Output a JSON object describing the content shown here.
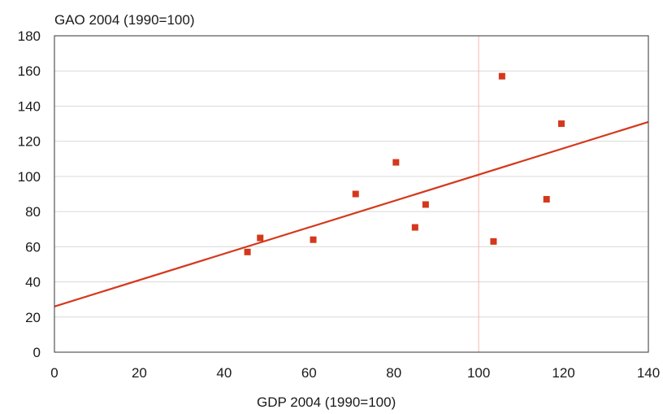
{
  "chart_data": {
    "type": "scatter",
    "title": "",
    "ylabel": "GAO  2004  (1990=100)",
    "xlabel": "GDP  2004  (1990=100)",
    "xlim": [
      0,
      140
    ],
    "ylim": [
      0,
      180
    ],
    "x_ticks": [
      0,
      20,
      40,
      60,
      80,
      100,
      120,
      140
    ],
    "y_ticks": [
      0,
      20,
      40,
      60,
      80,
      100,
      120,
      140,
      160,
      180
    ],
    "grid": "horizontal",
    "reference_line_x": 100,
    "series": [
      {
        "points": [
          {
            "x": 45.5,
            "y": 57
          },
          {
            "x": 48.5,
            "y": 65
          },
          {
            "x": 61,
            "y": 64
          },
          {
            "x": 71,
            "y": 90
          },
          {
            "x": 80.5,
            "y": 108
          },
          {
            "x": 85,
            "y": 71
          },
          {
            "x": 87.5,
            "y": 84
          },
          {
            "x": 103.5,
            "y": 63
          },
          {
            "x": 105.5,
            "y": 157
          },
          {
            "x": 116,
            "y": 87
          },
          {
            "x": 119.5,
            "y": 130
          }
        ]
      }
    ],
    "trendline": {
      "x": [
        0,
        140
      ],
      "y": [
        26,
        131
      ]
    },
    "colors": {
      "points": "#d4381c",
      "trendline": "#d4381c",
      "reference_line": "#f3b8ad",
      "grid": "#d9d9d9",
      "axis": "#333333"
    }
  }
}
